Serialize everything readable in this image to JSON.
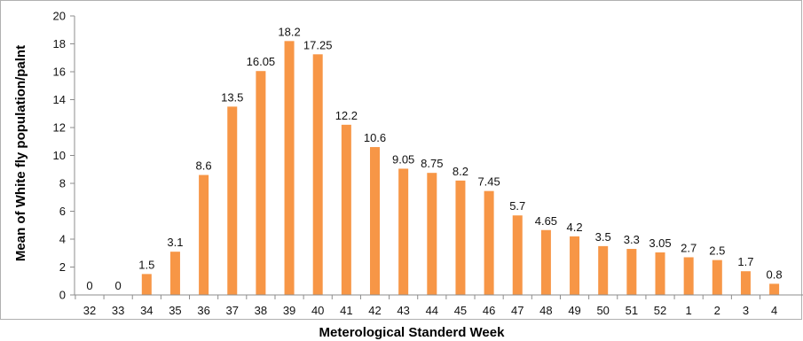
{
  "chart_data": {
    "type": "bar",
    "title": "",
    "xlabel": "Meterological  Standerd Week",
    "ylabel": "Mean of White fly population/palnt",
    "ylim": [
      0,
      20
    ],
    "yticks": [
      0,
      2,
      4,
      6,
      8,
      10,
      12,
      14,
      16,
      18,
      20
    ],
    "grid": false,
    "legend": "none",
    "bar_color": "#F79646",
    "categories": [
      "32",
      "33",
      "34",
      "35",
      "36",
      "37",
      "38",
      "39",
      "40",
      "41",
      "42",
      "43",
      "44",
      "45",
      "46",
      "47",
      "48",
      "49",
      "50",
      "51",
      "52",
      "1",
      "2",
      "3",
      "4"
    ],
    "values": [
      0,
      0,
      1.5,
      3.1,
      8.6,
      13.5,
      16.05,
      18.2,
      17.25,
      12.2,
      10.6,
      9.05,
      8.75,
      8.2,
      7.45,
      5.7,
      4.65,
      4.2,
      3.5,
      3.3,
      3.05,
      2.7,
      2.5,
      1.7,
      0.8
    ],
    "value_labels": [
      "0",
      "0",
      "1.5",
      "3.1",
      "8.6",
      "13.5",
      "16.05",
      "18.2",
      "17.25",
      "12.2",
      "10.6",
      "9.05",
      "8.75",
      "8.2",
      "7.45",
      "5.7",
      "4.65",
      "4.2",
      "3.5",
      "3.3",
      "3.05",
      "2.7",
      "2.5",
      "1.7",
      "0.8"
    ]
  }
}
